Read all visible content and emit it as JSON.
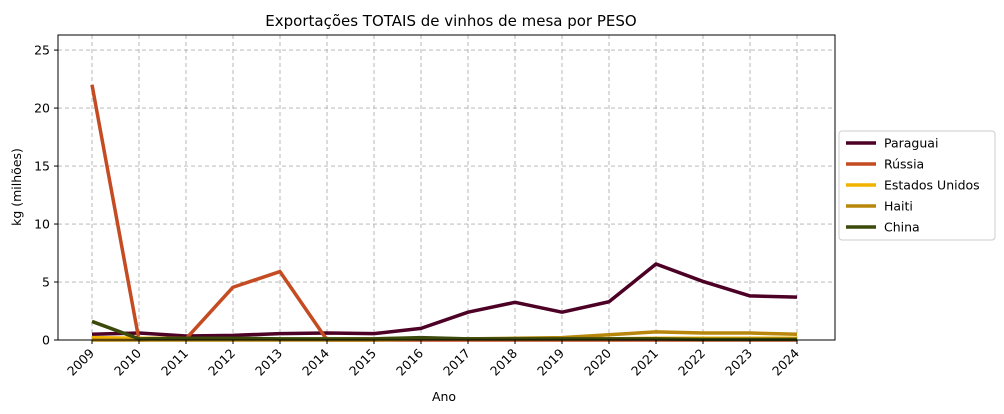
{
  "chart_data": {
    "type": "line",
    "title": "Exportações TOTAIS de vinhos de mesa por PESO",
    "xlabel": "Ano",
    "ylabel": "kg (milhões)",
    "x": [
      "2009",
      "2010",
      "2011",
      "2012",
      "2013",
      "2014",
      "2015",
      "2016",
      "2017",
      "2018",
      "2019",
      "2020",
      "2021",
      "2022",
      "2023",
      "2024"
    ],
    "ylim": [
      0,
      26.3
    ],
    "yticks": [
      0,
      5,
      10,
      15,
      20,
      25
    ],
    "grid": true,
    "legend_position": "right",
    "series": [
      {
        "name": "Paraguai",
        "color": "#4d0026",
        "values": [
          0.5,
          0.6,
          0.35,
          0.4,
          0.55,
          0.6,
          0.55,
          1.0,
          2.4,
          3.25,
          2.4,
          3.3,
          6.55,
          5.05,
          3.8,
          3.7
        ]
      },
      {
        "name": "Rússia",
        "color": "#c44b22",
        "values": [
          22.0,
          0.0,
          0.1,
          4.55,
          5.9,
          0.0,
          0.0,
          0.0,
          0.0,
          0.0,
          0.0,
          0.0,
          0.0,
          0.0,
          0.0,
          0.0
        ]
      },
      {
        "name": "Estados Unidos",
        "color": "#f2b200",
        "values": [
          0.2,
          0.15,
          0.15,
          0.1,
          0.1,
          0.1,
          0.1,
          0.15,
          0.1,
          0.1,
          0.1,
          0.1,
          0.15,
          0.15,
          0.15,
          0.15
        ]
      },
      {
        "name": "Haiti",
        "color": "#b8860b",
        "values": [
          0.0,
          0.0,
          0.0,
          0.0,
          0.0,
          0.0,
          0.0,
          0.1,
          0.1,
          0.15,
          0.2,
          0.45,
          0.7,
          0.6,
          0.6,
          0.5
        ]
      },
      {
        "name": "China",
        "color": "#3b4a0a",
        "values": [
          1.6,
          0.1,
          0.15,
          0.15,
          0.1,
          0.1,
          0.1,
          0.2,
          0.1,
          0.1,
          0.1,
          0.1,
          0.1,
          0.05,
          0.05,
          0.05
        ]
      }
    ]
  }
}
